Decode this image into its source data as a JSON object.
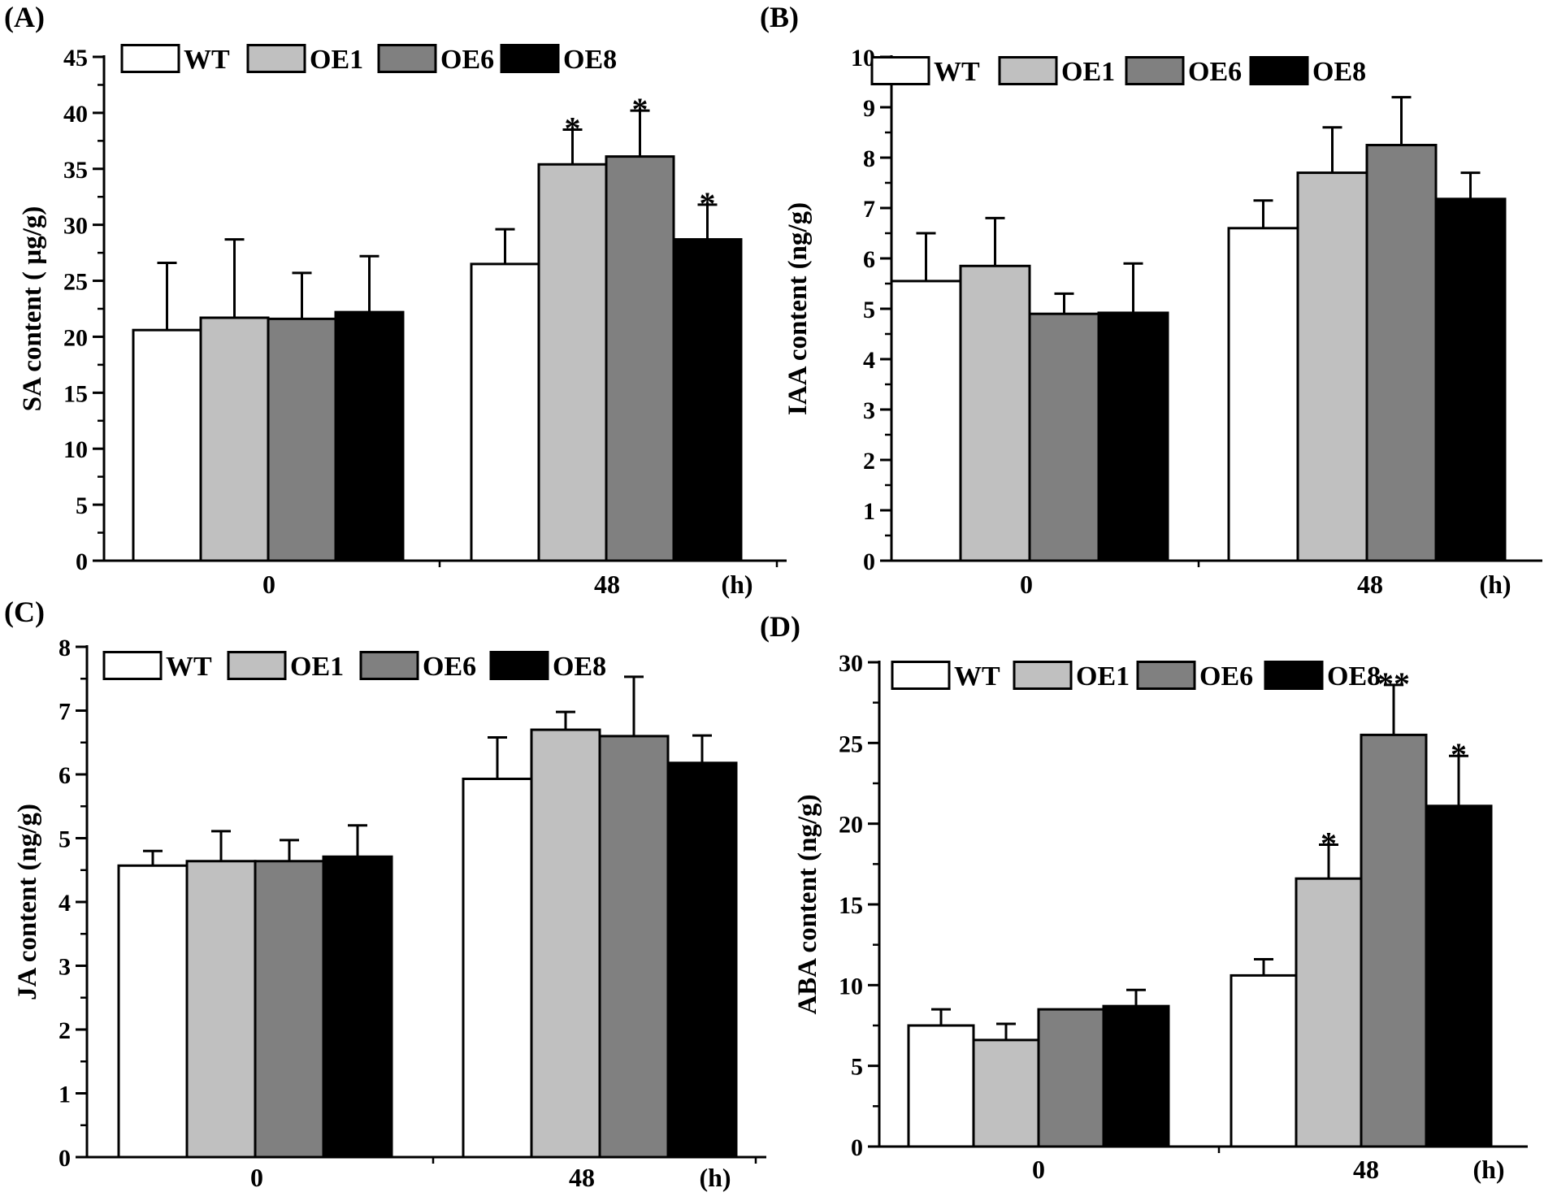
{
  "colors": {
    "WT": "#ffffff",
    "OE1": "#c0c0c0",
    "OE6": "#808080",
    "OE8": "#000000"
  },
  "chart_data": [
    {
      "type": "bar",
      "panel_label": "(A)",
      "ylabel": "SA content ( µg/g)",
      "xlabel": "(h)",
      "categories": [
        "0",
        "48"
      ],
      "ylim": [
        0,
        45
      ],
      "yticks": [
        "0",
        "5",
        "10",
        "15",
        "20",
        "25",
        "30",
        "35",
        "40",
        "45"
      ],
      "legend_position": "top-left",
      "series": [
        {
          "name": "WT",
          "values": [
            20.6,
            26.5
          ],
          "errors": [
            6.0,
            3.1
          ],
          "sig": [
            "",
            ""
          ]
        },
        {
          "name": "OE1",
          "values": [
            21.7,
            35.4
          ],
          "errors": [
            7.0,
            3.1
          ],
          "sig": [
            "",
            "*"
          ]
        },
        {
          "name": "OE6",
          "values": [
            21.6,
            36.1
          ],
          "errors": [
            4.1,
            4.1
          ],
          "sig": [
            "",
            "*"
          ]
        },
        {
          "name": "OE8",
          "values": [
            22.2,
            28.7
          ],
          "errors": [
            5.0,
            3.1
          ],
          "sig": [
            "",
            "*"
          ]
        }
      ]
    },
    {
      "type": "bar",
      "panel_label": "(B)",
      "ylabel": "IAA content (ng/g)",
      "xlabel": "(h)",
      "categories": [
        "0",
        "48"
      ],
      "ylim": [
        0,
        10
      ],
      "yticks": [
        "0",
        "1",
        "2",
        "3",
        "4",
        "5",
        "6",
        "7",
        "8",
        "9",
        "10"
      ],
      "legend_position": "top-left",
      "series": [
        {
          "name": "WT",
          "values": [
            5.55,
            6.6
          ],
          "errors": [
            0.95,
            0.55
          ],
          "sig": [
            "",
            ""
          ]
        },
        {
          "name": "OE1",
          "values": [
            5.85,
            7.7
          ],
          "errors": [
            0.95,
            0.9
          ],
          "sig": [
            "",
            ""
          ]
        },
        {
          "name": "OE6",
          "values": [
            4.9,
            8.25
          ],
          "errors": [
            0.4,
            0.95
          ],
          "sig": [
            "",
            ""
          ]
        },
        {
          "name": "OE8",
          "values": [
            4.92,
            7.18
          ],
          "errors": [
            0.98,
            0.52
          ],
          "sig": [
            "",
            ""
          ]
        }
      ]
    },
    {
      "type": "bar",
      "panel_label": "(C)",
      "ylabel": "JA content (ng/g)",
      "xlabel": "(h)",
      "categories": [
        "0",
        "48"
      ],
      "ylim": [
        0,
        8
      ],
      "yticks": [
        "0",
        "1",
        "2",
        "3",
        "4",
        "5",
        "6",
        "7",
        "8"
      ],
      "legend_position": "top-left",
      "series": [
        {
          "name": "WT",
          "values": [
            4.57,
            5.93
          ],
          "errors": [
            0.23,
            0.65
          ],
          "sig": [
            "",
            ""
          ]
        },
        {
          "name": "OE1",
          "values": [
            4.64,
            6.7
          ],
          "errors": [
            0.47,
            0.28
          ],
          "sig": [
            "",
            ""
          ]
        },
        {
          "name": "OE6",
          "values": [
            4.64,
            6.6
          ],
          "errors": [
            0.33,
            0.93
          ],
          "sig": [
            "",
            ""
          ]
        },
        {
          "name": "OE8",
          "values": [
            4.71,
            6.18
          ],
          "errors": [
            0.49,
            0.43
          ],
          "sig": [
            "",
            ""
          ]
        }
      ]
    },
    {
      "type": "bar",
      "panel_label": "(D)",
      "ylabel": "ABA content (ng/g)",
      "xlabel": "(h)",
      "categories": [
        "0",
        "48"
      ],
      "ylim": [
        0,
        30
      ],
      "yticks": [
        "0",
        "5",
        "10",
        "15",
        "20",
        "25",
        "30"
      ],
      "legend_position": "top-left",
      "series": [
        {
          "name": "WT",
          "values": [
            7.5,
            10.6
          ],
          "errors": [
            1.0,
            1.0
          ],
          "sig": [
            "",
            ""
          ]
        },
        {
          "name": "OE1",
          "values": [
            6.6,
            16.6
          ],
          "errors": [
            1.0,
            2.1
          ],
          "sig": [
            "",
            "*"
          ]
        },
        {
          "name": "OE6",
          "values": [
            8.5,
            25.5
          ],
          "errors": [
            0.0,
            3.1
          ],
          "sig": [
            "",
            "**"
          ]
        },
        {
          "name": "OE8",
          "values": [
            8.7,
            21.1
          ],
          "errors": [
            1.0,
            3.1
          ],
          "sig": [
            "",
            "*"
          ]
        }
      ]
    }
  ]
}
